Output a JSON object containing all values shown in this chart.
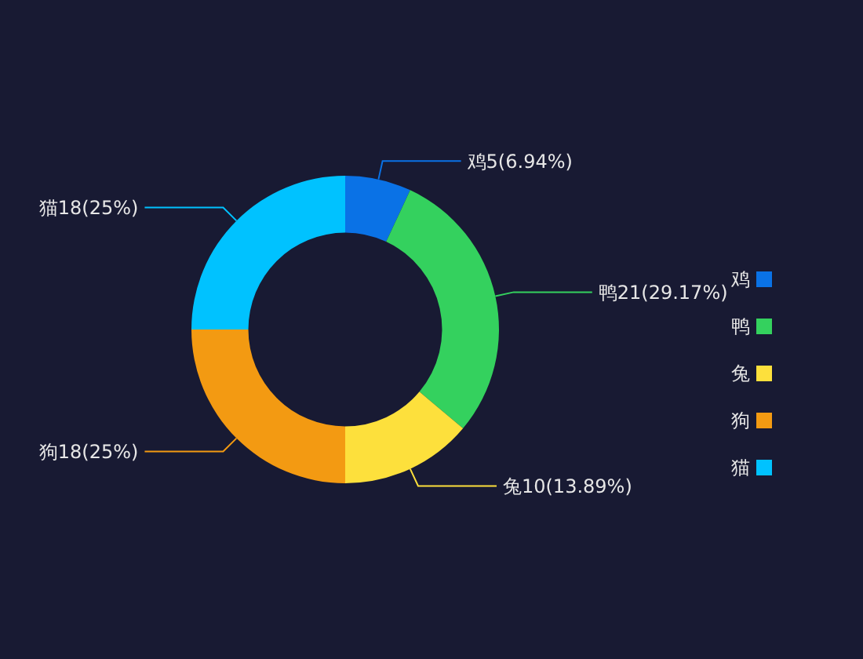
{
  "chart_data": {
    "type": "donut",
    "categories": [
      "鸡",
      "鸭",
      "兔",
      "狗",
      "猫"
    ],
    "values": [
      5,
      21,
      10,
      18,
      18
    ],
    "colors": [
      "#0a72e6",
      "#34d15e",
      "#fde03c",
      "#f39a12",
      "#00c2ff"
    ],
    "value_labels": [
      "鸡5(6.94%)",
      "鸭21(29.17%)",
      "兔10(13.89%)",
      "狗18(25%)",
      "猫18(25%)"
    ],
    "legend": "right"
  }
}
